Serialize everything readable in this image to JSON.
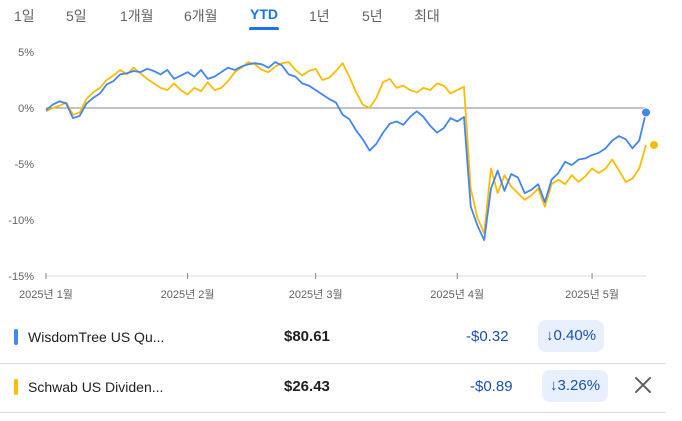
{
  "tabs": [
    {
      "label": "1일",
      "active": false
    },
    {
      "label": "5일",
      "active": false
    },
    {
      "label": "1개월",
      "active": false
    },
    {
      "label": "6개월",
      "active": false
    },
    {
      "label": "YTD",
      "active": true
    },
    {
      "label": "1년",
      "active": false
    },
    {
      "label": "5년",
      "active": false
    },
    {
      "label": "최대",
      "active": false
    }
  ],
  "chart_data": {
    "type": "line",
    "ylim": [
      -15,
      5
    ],
    "yticks": [
      "5%",
      "0%",
      "-5%",
      "-10%",
      "-15%"
    ],
    "ytick_values": [
      5,
      0,
      -5,
      -10,
      -15
    ],
    "xticks": [
      "2025년 1월",
      "2025년 2월",
      "2025년 3월",
      "2025년 4월",
      "2025년 5월"
    ],
    "x_range": [
      1,
      90
    ],
    "xtick_positions": [
      1,
      22,
      41,
      62,
      82
    ],
    "baseline": 0,
    "grid": false,
    "series": [
      {
        "name": "WisdomTree US Qu...",
        "color": "#4285f4",
        "end_marker": true,
        "values": [
          -0.2,
          0.3,
          0.6,
          0.4,
          -0.9,
          -0.7,
          0.4,
          0.9,
          1.3,
          2.1,
          2.4,
          3.0,
          3.1,
          3.3,
          3.2,
          3.5,
          3.3,
          3.0,
          3.4,
          2.6,
          2.9,
          3.2,
          2.8,
          3.4,
          2.6,
          2.8,
          3.2,
          3.6,
          3.4,
          3.7,
          3.9,
          4.0,
          3.9,
          3.6,
          4.1,
          3.8,
          3.0,
          2.8,
          2.2,
          2.0,
          1.6,
          1.2,
          0.8,
          0.5,
          -0.6,
          -1.0,
          -2.0,
          -2.8,
          -3.8,
          -3.2,
          -2.2,
          -1.4,
          -1.2,
          -1.5,
          -0.8,
          -0.3,
          -0.8,
          -1.6,
          -2.2,
          -1.8,
          -0.9,
          -1.2,
          -0.8,
          -8.8,
          -10.5,
          -11.8,
          -7.2,
          -5.6,
          -7.4,
          -5.9,
          -6.2,
          -7.6,
          -7.3,
          -6.8,
          -8.4,
          -6.4,
          -5.8,
          -4.8,
          -5.1,
          -4.6,
          -4.5,
          -4.2,
          -4.0,
          -3.6,
          -2.9,
          -2.5,
          -2.8,
          -3.6,
          -2.9,
          -0.4
        ]
      },
      {
        "name": "Schwab US Dividen...",
        "color": "#fbbc04",
        "end_marker": true,
        "values": [
          -0.3,
          0.0,
          0.2,
          0.5,
          -0.6,
          -0.4,
          0.8,
          1.4,
          1.8,
          2.5,
          2.9,
          3.4,
          3.0,
          3.6,
          3.1,
          2.6,
          2.2,
          1.8,
          1.6,
          2.2,
          1.6,
          1.2,
          1.8,
          1.5,
          2.3,
          1.6,
          1.8,
          2.4,
          3.2,
          3.6,
          4.1,
          3.9,
          3.4,
          3.2,
          3.7,
          4.0,
          4.1,
          3.4,
          2.9,
          3.3,
          3.5,
          2.5,
          2.7,
          3.3,
          4.0,
          2.8,
          1.4,
          0.3,
          0.0,
          0.9,
          2.3,
          2.6,
          1.8,
          2.0,
          1.6,
          1.4,
          1.8,
          1.6,
          2.2,
          2.0,
          1.3,
          1.6,
          1.9,
          -7.2,
          -9.8,
          -11.2,
          -5.4,
          -7.6,
          -6.0,
          -7.0,
          -7.6,
          -8.2,
          -7.8,
          -7.2,
          -8.8,
          -6.8,
          -6.4,
          -6.8,
          -6.0,
          -6.6,
          -6.1,
          -5.4,
          -5.8,
          -5.4,
          -4.6,
          -5.6,
          -6.6,
          -6.3,
          -5.4,
          -3.3
        ]
      }
    ]
  },
  "rows": [
    {
      "name": "WisdomTree US Qu...",
      "color": "#4285f4",
      "price": "$80.61",
      "change": "-$0.32",
      "pct": "0.40%",
      "arrow": "↓"
    },
    {
      "name": "Schwab US Dividen...",
      "color": "#fbbc04",
      "price": "$26.43",
      "change": "-$0.89",
      "pct": "3.26%",
      "arrow": "↓"
    }
  ]
}
